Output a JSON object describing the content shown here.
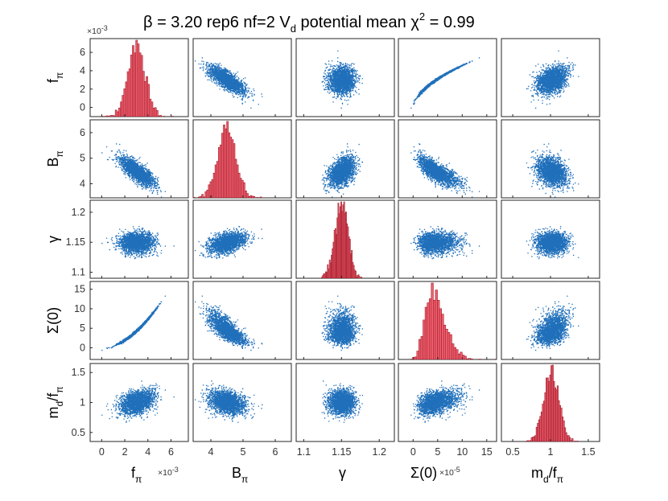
{
  "chart_data": {
    "type": "scatter",
    "title": {
      "beta_symbol": "β",
      "beta_text": " = 3.20    rep6  nf=2    V",
      "v_sub": "d",
      "pot_text": "  potential   mean ",
      "chi_symbol": "χ",
      "chi_sup": "2",
      "chi_text": " = 0.99"
    },
    "variables": [
      {
        "key": "fpi",
        "main": "f",
        "sub": "π",
        "after": "",
        "exponent_label": "×10",
        "exponent_sup": "-3",
        "range": [
          -1,
          7.5
        ],
        "ticks": [
          0,
          2,
          4,
          6
        ],
        "tick_labels": [
          "0",
          "2",
          "4",
          "6"
        ],
        "mean": 3.0,
        "sd": 0.75,
        "skew": 0
      },
      {
        "key": "Bpi",
        "main": "B",
        "sub": "π",
        "after": "",
        "exponent_label": "",
        "exponent_sup": "",
        "range": [
          3.45,
          6.5
        ],
        "ticks": [
          4,
          5,
          6
        ],
        "tick_labels": [
          "4",
          "5",
          "6"
        ],
        "mean": 4.5,
        "sd": 0.28,
        "skew": 0
      },
      {
        "key": "gamma",
        "main": "γ",
        "sub": "",
        "after": "",
        "exponent_label": "",
        "exponent_sup": "",
        "range": [
          1.09,
          1.22
        ],
        "ticks": [
          1.1,
          1.15,
          1.2
        ],
        "tick_labels": [
          "1.1",
          "1.15",
          "1.2"
        ],
        "mean": 1.15,
        "sd": 0.013,
        "skew": 0
      },
      {
        "key": "sigma",
        "main": "Σ(0)",
        "sub": "",
        "after": "",
        "exponent_label": "×10",
        "exponent_sup": "-5",
        "range": [
          -3,
          17
        ],
        "ticks": [
          0,
          5,
          10,
          15
        ],
        "tick_labels": [
          "0",
          "5",
          "10",
          "15"
        ],
        "mean": 4.3,
        "sd": 2.4,
        "skew": 1
      },
      {
        "key": "mdfpi",
        "main": "m",
        "sub": "d",
        "after": "/f",
        "sub2": "π",
        "exponent_label": "",
        "exponent_sup": "",
        "range": [
          0.35,
          1.65
        ],
        "ticks": [
          0.5,
          1,
          1.5
        ],
        "tick_labels": [
          "0.5",
          "1",
          "1.5"
        ],
        "mean": 1.01,
        "sd": 0.1,
        "skew": 0
      }
    ],
    "correlations": {
      "fpi-Bpi": -0.78,
      "fpi-gamma": 0.0,
      "fpi-sigma": 0.99,
      "fpi-mdfpi": 0.35,
      "Bpi-gamma": 0.72,
      "Bpi-sigma": -0.72,
      "Bpi-mdfpi": -0.25,
      "gamma-sigma": 0.0,
      "gamma-mdfpi": 0.0,
      "sigma-mdfpi": 0.32
    },
    "diagonal": "histogram",
    "off_diagonal": "scatter",
    "points_per_panel": 2200,
    "colors": {
      "scatter": "#1f6fba",
      "hist_fill": "#f0606e",
      "hist_edge": "#9e1a2a",
      "frame": "#262626"
    }
  }
}
